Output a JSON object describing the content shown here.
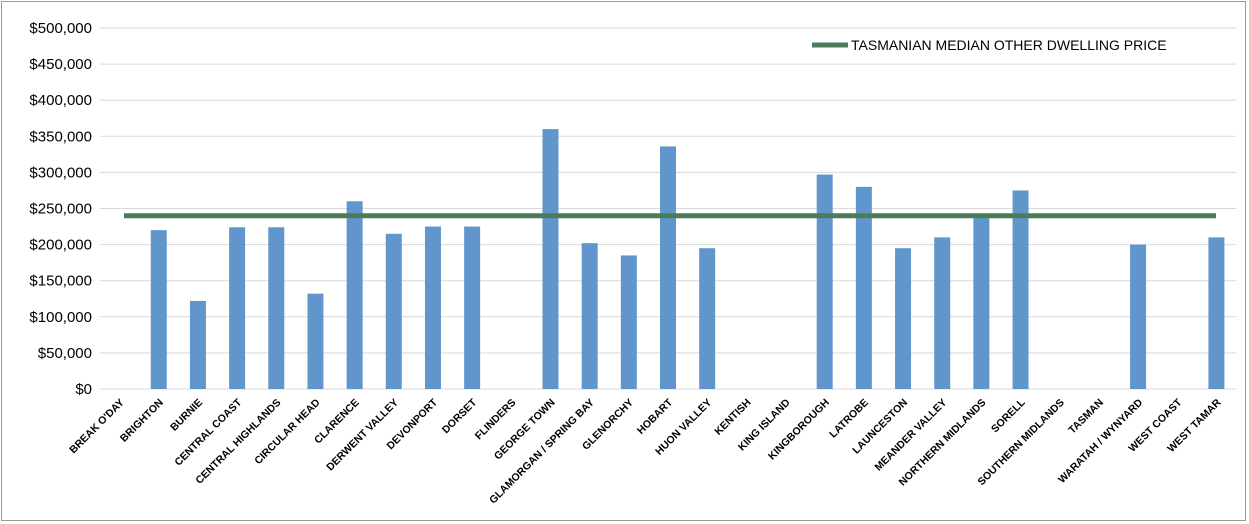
{
  "chart_data": {
    "type": "bar",
    "categories": [
      "BREAK O'DAY",
      "BRIGHTON",
      "BURNIE",
      "CENTRAL COAST",
      "CENTRAL HIGHLANDS",
      "CIRCULAR HEAD",
      "CLARENCE",
      "DERWENT VALLEY",
      "DEVONPORT",
      "DORSET",
      "FLINDERS",
      "GEORGE TOWN",
      "GLAMORGAN / SPRING BAY",
      "GLENORCHY",
      "HOBART",
      "HUON VALLEY",
      "KENTISH",
      "KING ISLAND",
      "KINGBOROUGH",
      "LATROBE",
      "LAUNCESTON",
      "MEANDER VALLEY",
      "NORTHERN MIDLANDS",
      "SORELL",
      "SOUTHERN MIDLANDS",
      "TASMAN",
      "WARATAH / WYNYARD",
      "WEST COAST",
      "WEST TAMAR"
    ],
    "values": [
      0,
      220000,
      122000,
      224000,
      224000,
      132000,
      260000,
      215000,
      225000,
      225000,
      0,
      360000,
      202000,
      185000,
      336000,
      195000,
      0,
      0,
      297000,
      280000,
      195000,
      210000,
      238000,
      275000,
      0,
      0,
      200000,
      0,
      210000
    ],
    "ylim": [
      0,
      500000
    ],
    "yticks": [
      0,
      50000,
      100000,
      150000,
      200000,
      250000,
      300000,
      350000,
      400000,
      450000,
      500000
    ],
    "ytick_labels": [
      "$0",
      "$50,000",
      "$100,000",
      "$150,000",
      "$200,000",
      "$250,000",
      "$300,000",
      "$350,000",
      "$400,000",
      "$450,000",
      "$500,000"
    ],
    "reference_line": {
      "name": "TASMANIAN MEDIAN OTHER DWELLING PRICE",
      "value": 240000,
      "color": "#4a7c59"
    },
    "bar_color": "#6196cc",
    "grid": true,
    "legend": "top-right",
    "title": "",
    "xlabel": "",
    "ylabel": ""
  }
}
